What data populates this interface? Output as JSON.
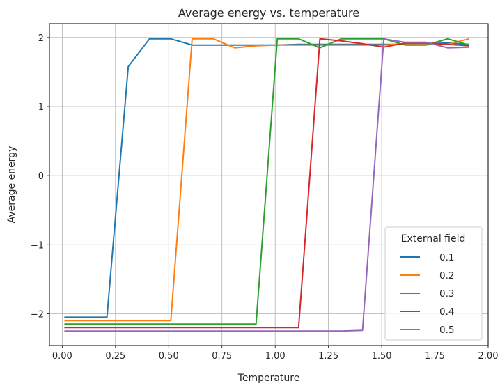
{
  "chart_data": {
    "type": "line",
    "title": "Average energy vs. temperature",
    "xlabel": "Temperature",
    "ylabel": "Average energy",
    "xlim": [
      -0.06,
      2.0
    ],
    "ylim": [
      -2.46,
      2.2
    ],
    "xticks": [
      0.0,
      0.25,
      0.5,
      0.75,
      1.0,
      1.25,
      1.5,
      1.75,
      2.0
    ],
    "xtick_labels": [
      "0.00",
      "0.25",
      "0.50",
      "0.75",
      "1.00",
      "1.25",
      "1.50",
      "1.75",
      "2.00"
    ],
    "yticks": [
      -2,
      -1,
      0,
      1,
      2
    ],
    "ytick_labels": [
      "−2",
      "−1",
      "0",
      "1",
      "2"
    ],
    "grid": true,
    "legend": {
      "title": "External field",
      "placement": "lower-right"
    },
    "x": [
      0.01,
      0.11,
      0.21,
      0.31,
      0.41,
      0.51,
      0.61,
      0.71,
      0.81,
      0.91,
      1.01,
      1.11,
      1.21,
      1.31,
      1.41,
      1.51,
      1.61,
      1.71,
      1.81,
      1.91
    ],
    "series": [
      {
        "name": "0.1",
        "color": "#1f77b4",
        "values": [
          -2.05,
          -2.05,
          -2.05,
          1.58,
          1.98,
          1.98,
          1.89,
          1.89,
          1.89,
          1.89,
          1.89,
          1.9,
          1.9,
          1.9,
          1.9,
          1.9,
          1.9,
          1.91,
          1.92,
          1.9
        ]
      },
      {
        "name": "0.2",
        "color": "#ff7f0e",
        "values": [
          -2.1,
          -2.1,
          -2.1,
          -2.1,
          -2.1,
          -2.1,
          1.98,
          1.98,
          1.85,
          1.88,
          1.89,
          1.89,
          1.89,
          1.89,
          1.89,
          1.89,
          1.91,
          1.91,
          1.9,
          1.98
        ]
      },
      {
        "name": "0.3",
        "color": "#2ca02c",
        "values": [
          -2.15,
          -2.15,
          -2.15,
          -2.15,
          -2.15,
          -2.15,
          -2.15,
          -2.15,
          -2.15,
          -2.15,
          1.98,
          1.98,
          1.85,
          1.98,
          1.98,
          1.98,
          1.89,
          1.89,
          1.98,
          1.89
        ]
      },
      {
        "name": "0.4",
        "color": "#d62728",
        "values": [
          -2.2,
          -2.2,
          -2.2,
          -2.2,
          -2.2,
          -2.2,
          -2.2,
          -2.2,
          -2.2,
          -2.2,
          -2.2,
          -2.2,
          1.98,
          1.95,
          1.91,
          1.86,
          1.92,
          1.92,
          1.9,
          1.88
        ]
      },
      {
        "name": "0.5",
        "color": "#9467bd",
        "values": [
          -2.25,
          -2.25,
          -2.25,
          -2.25,
          -2.25,
          -2.25,
          -2.25,
          -2.25,
          -2.25,
          -2.25,
          -2.25,
          -2.25,
          -2.25,
          -2.25,
          -2.24,
          1.98,
          1.93,
          1.93,
          1.85,
          1.86
        ]
      }
    ]
  }
}
